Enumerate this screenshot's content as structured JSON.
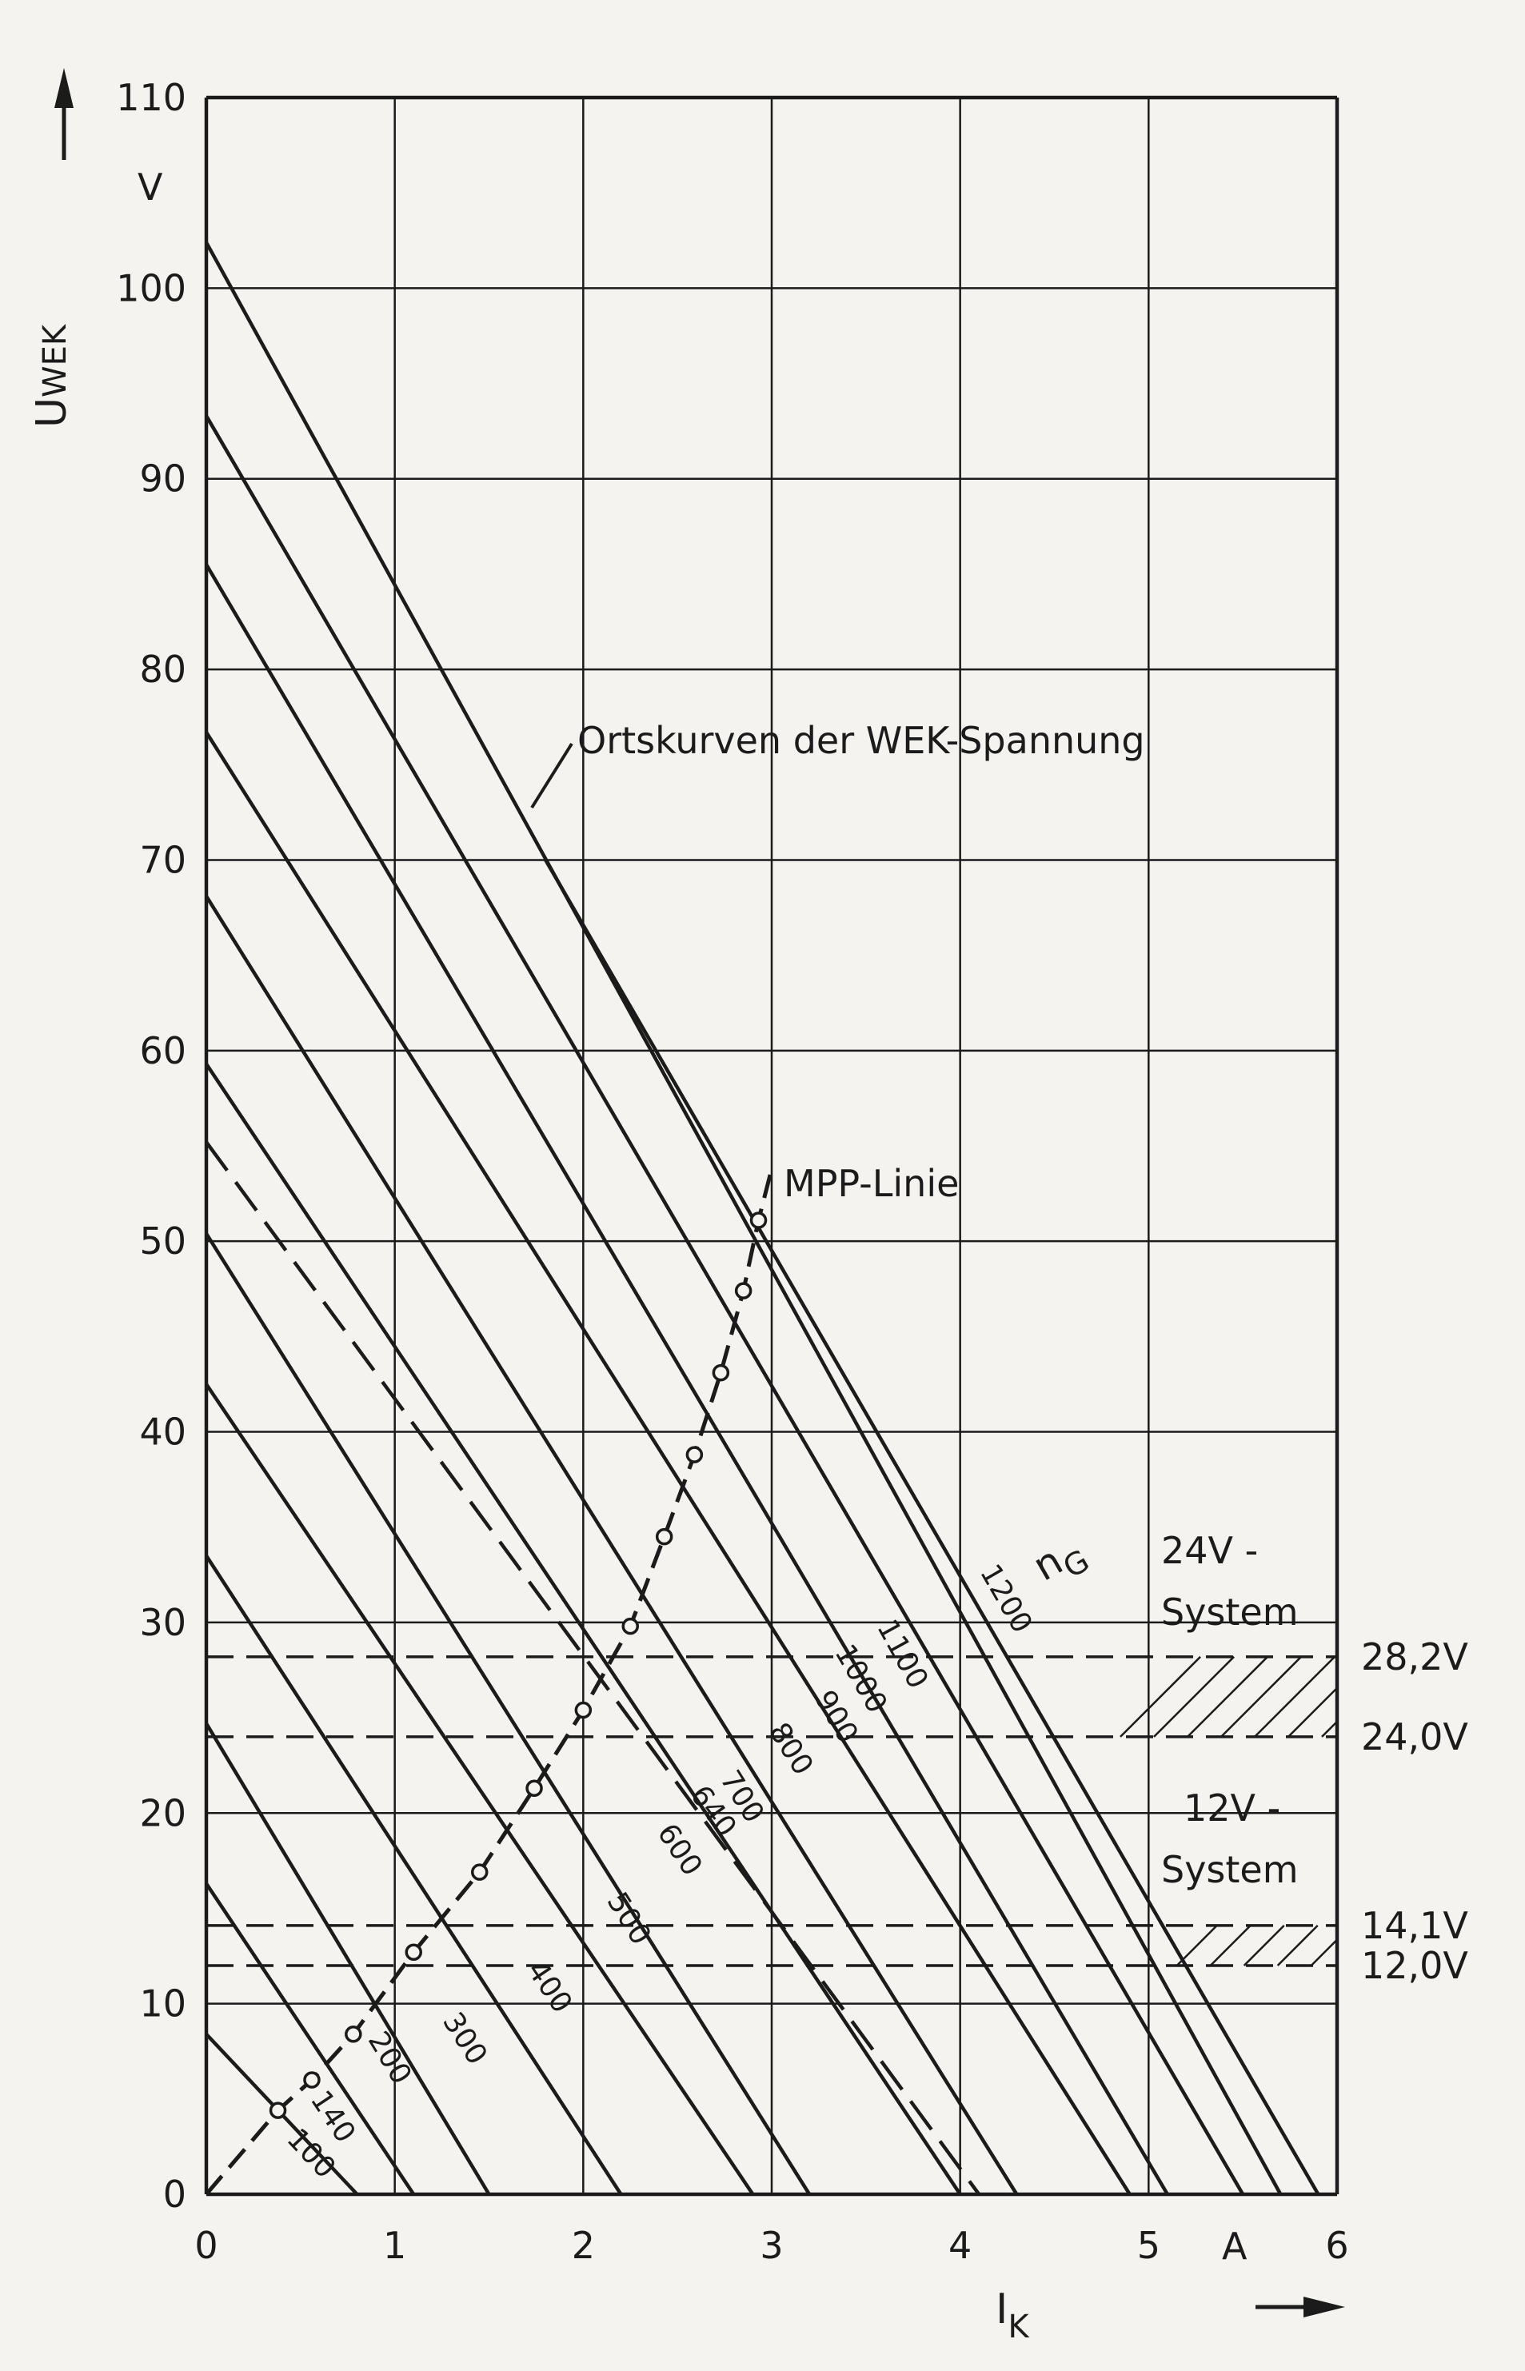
{
  "chart_data": {
    "type": "line",
    "xlabel": {
      "main": "I",
      "sub": "K"
    },
    "ylabel": {
      "main": "U",
      "sub": "WEK"
    },
    "x_unit": "A",
    "y_unit": "V",
    "xlim": [
      0,
      6
    ],
    "ylim": [
      0,
      110
    ],
    "x_ticks": [
      "0",
      "1",
      "2",
      "3",
      "4",
      "5",
      "6"
    ],
    "y_ticks": [
      "0",
      "10",
      "20",
      "30",
      "40",
      "50",
      "60",
      "70",
      "80",
      "90",
      "100",
      "110"
    ],
    "grid": true,
    "curve_family_label": "n",
    "curve_family_sub": "G",
    "annotation_ortskurven": "Ortskurven der WEK-Spannung",
    "annotation_mpp": "MPP-Linie",
    "series": [
      {
        "name": "100",
        "style": "solid",
        "x": [
          0,
          0.8
        ],
        "y": [
          8.4,
          0
        ]
      },
      {
        "name": "140",
        "style": "solid",
        "x": [
          0,
          1.1
        ],
        "y": [
          16.3,
          0
        ]
      },
      {
        "name": "200",
        "style": "solid",
        "x": [
          0,
          1.5
        ],
        "y": [
          24.7,
          0
        ]
      },
      {
        "name": "300",
        "style": "solid",
        "x": [
          0,
          2.2
        ],
        "y": [
          33.5,
          0
        ]
      },
      {
        "name": "400",
        "style": "solid",
        "x": [
          0,
          2.9
        ],
        "y": [
          42.5,
          0
        ]
      },
      {
        "name": "500",
        "style": "solid",
        "x": [
          0,
          3.2
        ],
        "y": [
          50.4,
          0
        ]
      },
      {
        "name": "600",
        "style": "solid",
        "x": [
          0,
          4.0
        ],
        "y": [
          59.3,
          0
        ]
      },
      {
        "name": "640",
        "style": "dashed",
        "x": [
          0,
          4.1
        ],
        "y": [
          55.2,
          0
        ]
      },
      {
        "name": "700",
        "style": "solid",
        "x": [
          0,
          4.3
        ],
        "y": [
          68.1,
          0
        ]
      },
      {
        "name": "800",
        "style": "solid",
        "x": [
          0,
          4.9
        ],
        "y": [
          76.7,
          0
        ]
      },
      {
        "name": "900",
        "style": "solid",
        "x": [
          0,
          5.1
        ],
        "y": [
          85.5,
          0
        ]
      },
      {
        "name": "1000",
        "style": "solid",
        "x": [
          0,
          5.5
        ],
        "y": [
          93.3,
          0
        ]
      },
      {
        "name": "1100",
        "style": "solid",
        "x": [
          0,
          5.7
        ],
        "y": [
          102.4,
          0
        ]
      },
      {
        "name": "1200",
        "style": "solid",
        "x": [
          1.8,
          5.9
        ],
        "y": [
          70.0,
          0
        ]
      }
    ],
    "mpp_line": {
      "name": "MPP-Linie",
      "x": [
        0,
        0.38,
        0.56,
        0.78,
        1.1,
        1.45,
        1.74,
        2.0,
        2.25,
        2.43,
        2.59,
        2.73,
        2.85,
        2.93,
        3.0
      ],
      "y": [
        0,
        4.4,
        6.0,
        8.4,
        12.7,
        16.9,
        21.3,
        25.4,
        29.8,
        34.5,
        38.8,
        43.1,
        47.4,
        51.1,
        53.8
      ],
      "markers": [
        [
          0.38,
          4.4
        ],
        [
          0.56,
          6.0
        ],
        [
          0.78,
          8.4
        ],
        [
          1.1,
          12.7
        ],
        [
          1.45,
          16.9
        ],
        [
          1.74,
          21.3
        ],
        [
          2.0,
          25.4
        ],
        [
          2.25,
          29.8
        ],
        [
          2.43,
          34.5
        ],
        [
          2.59,
          38.8
        ],
        [
          2.73,
          43.1
        ],
        [
          2.85,
          47.4
        ],
        [
          2.93,
          51.1
        ]
      ]
    },
    "systems": [
      {
        "name_line1": "24V -",
        "name_line2": "System",
        "levels": [
          {
            "value": 28.2,
            "label": "28,2V"
          },
          {
            "value": 24.0,
            "label": "24,0V"
          }
        ]
      },
      {
        "name_line1": "12V -",
        "name_line2": "System",
        "levels": [
          {
            "value": 14.1,
            "label": "14,1V"
          },
          {
            "value": 12.0,
            "label": "12,0V"
          }
        ]
      }
    ],
    "colors": {
      "ink": "#1b1b1b",
      "paper": "#f4f3ef"
    }
  }
}
